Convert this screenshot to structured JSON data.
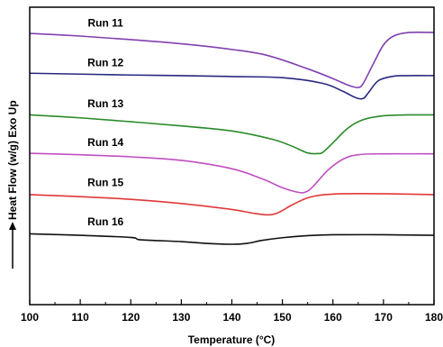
{
  "chart_data": {
    "type": "line",
    "xlabel": "Temperature (°C)",
    "ylabel": "Heat Flow (w/g) Exo Up",
    "xlim": [
      100,
      180
    ],
    "xticks": [
      100,
      110,
      120,
      130,
      140,
      150,
      160,
      170,
      180
    ],
    "ylim": [
      0,
      100
    ],
    "yticks_shown": false,
    "grid": false,
    "legend": "none",
    "series": [
      {
        "name": "Run 11",
        "color": "#8040b0",
        "points": [
          [
            100,
            91.2
          ],
          [
            110,
            90.3
          ],
          [
            120,
            89.1
          ],
          [
            130,
            87.7
          ],
          [
            140,
            85.8
          ],
          [
            147,
            83.8
          ],
          [
            155,
            79.3
          ],
          [
            160,
            76.0
          ],
          [
            163,
            73.8
          ],
          [
            165,
            73.0
          ],
          [
            166,
            74.4
          ],
          [
            168,
            81.0
          ],
          [
            170,
            87.3
          ],
          [
            172,
            90.3
          ],
          [
            175,
            91.5
          ],
          [
            180,
            91.5
          ]
        ]
      },
      {
        "name": "Run 12",
        "color": "#282880",
        "points": [
          [
            100,
            77.8
          ],
          [
            110,
            77.5
          ],
          [
            120,
            77.2
          ],
          [
            130,
            77.0
          ],
          [
            140,
            76.7
          ],
          [
            150,
            76.3
          ],
          [
            158,
            74.4
          ],
          [
            162,
            71.7
          ],
          [
            164.5,
            69.6
          ],
          [
            166,
            69.3
          ],
          [
            167,
            71.2
          ],
          [
            169,
            75.3
          ],
          [
            172,
            76.8
          ],
          [
            175,
            77.0
          ],
          [
            180,
            77.0
          ]
        ]
      },
      {
        "name": "Run 13",
        "color": "#2a8a2a",
        "points": [
          [
            100,
            63.8
          ],
          [
            110,
            62.8
          ],
          [
            120,
            61.5
          ],
          [
            130,
            60.1
          ],
          [
            140,
            58.4
          ],
          [
            148,
            55.6
          ],
          [
            152,
            53.2
          ],
          [
            155,
            51.0
          ],
          [
            157,
            50.8
          ],
          [
            158,
            51.2
          ],
          [
            160,
            54.4
          ],
          [
            163,
            59.4
          ],
          [
            166,
            62.2
          ],
          [
            170,
            63.5
          ],
          [
            175,
            63.8
          ],
          [
            180,
            63.8
          ]
        ]
      },
      {
        "name": "Run 14",
        "color": "#c050c0",
        "points": [
          [
            100,
            50.9
          ],
          [
            110,
            50.4
          ],
          [
            120,
            49.7
          ],
          [
            130,
            48.5
          ],
          [
            140,
            45.7
          ],
          [
            146,
            42.3
          ],
          [
            150,
            39.3
          ],
          [
            153,
            37.8
          ],
          [
            154.5,
            37.8
          ],
          [
            156,
            39.6
          ],
          [
            159,
            45.2
          ],
          [
            162,
            48.9
          ],
          [
            165,
            50.4
          ],
          [
            170,
            50.7
          ],
          [
            180,
            50.7
          ]
        ]
      },
      {
        "name": "Run 15",
        "color": "#e03838",
        "points": [
          [
            100,
            37.0
          ],
          [
            110,
            36.3
          ],
          [
            120,
            35.4
          ],
          [
            130,
            34.0
          ],
          [
            140,
            32.0
          ],
          [
            144,
            30.8
          ],
          [
            147,
            30.2
          ],
          [
            149,
            30.8
          ],
          [
            152,
            33.6
          ],
          [
            155,
            35.9
          ],
          [
            158,
            36.9
          ],
          [
            162,
            37.3
          ],
          [
            170,
            37.3
          ],
          [
            180,
            37.0
          ]
        ]
      },
      {
        "name": "Run 16",
        "color": "#101010",
        "points": [
          [
            100,
            23.8
          ],
          [
            110,
            23.3
          ],
          [
            120,
            22.6
          ],
          [
            122,
            21.8
          ],
          [
            130,
            21.2
          ],
          [
            135,
            20.6
          ],
          [
            140,
            20.3
          ],
          [
            143,
            20.6
          ],
          [
            146,
            21.6
          ],
          [
            150,
            22.5
          ],
          [
            155,
            23.2
          ],
          [
            160,
            23.5
          ],
          [
            170,
            23.5
          ],
          [
            180,
            23.3
          ]
        ]
      }
    ],
    "labels": [
      {
        "text": "Run 11",
        "x": 115,
        "y": 93.5
      },
      {
        "text": "Run 12",
        "x": 115,
        "y": 80.2
      },
      {
        "text": "Run 13",
        "x": 115,
        "y": 66.3
      },
      {
        "text": "Run 14",
        "x": 115,
        "y": 53.3
      },
      {
        "text": "Run 15",
        "x": 115,
        "y": 39.8
      },
      {
        "text": "Run 16",
        "x": 115,
        "y": 26.6
      }
    ]
  }
}
